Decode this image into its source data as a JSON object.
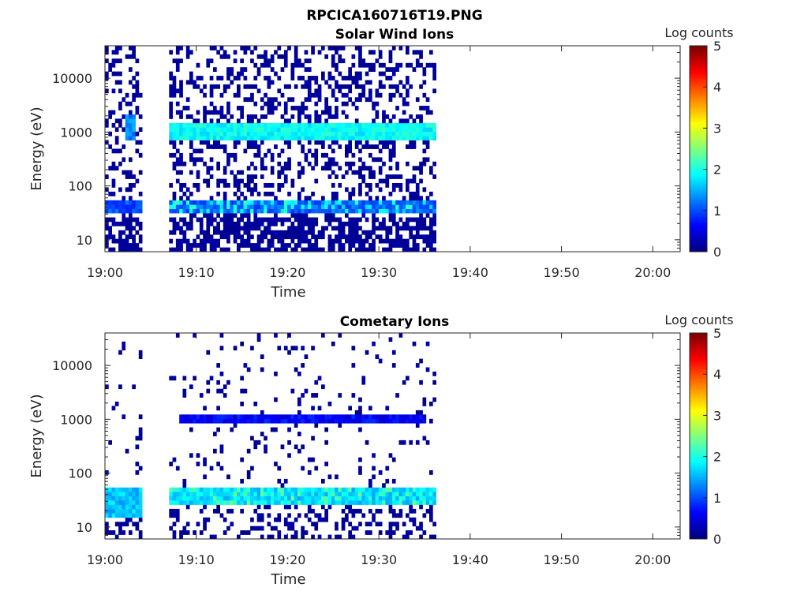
{
  "figure_title": "RPCICA160716T19.PNG",
  "colorbar": {
    "label": "Log counts",
    "ticks": [
      "0",
      "1",
      "2",
      "3",
      "4",
      "5"
    ],
    "range": [
      0,
      5
    ],
    "colormap": "jet"
  },
  "chart_data": [
    {
      "type": "heatmap",
      "title": "Solar Wind Ions",
      "xlabel": "Time",
      "ylabel": "Energy (eV)",
      "x_tick_labels": [
        "19:00",
        "19:10",
        "19:20",
        "19:30",
        "19:40",
        "19:50",
        "20:00"
      ],
      "y_tick_labels": [
        "10",
        "100",
        "1000",
        "10000"
      ],
      "y_scale": "log",
      "xlim": [
        "19:00",
        "20:03"
      ],
      "ylim": [
        6,
        40000
      ],
      "z_range": [
        0,
        5
      ],
      "data_time_range": [
        "19:00",
        "19:36"
      ],
      "data_gap": [
        "19:04",
        "19:07"
      ],
      "bands": [
        {
          "energy_min": 30,
          "energy_max": 55,
          "log_counts": 1.1,
          "span": [
            "19:07",
            "19:36"
          ],
          "note_peak": 1.9
        },
        {
          "energy_min": 30,
          "energy_max": 55,
          "log_counts": 1.0,
          "span": [
            "19:00",
            "19:04"
          ]
        },
        {
          "energy_min": 700,
          "energy_max": 1500,
          "log_counts": 1.9,
          "span": [
            "19:07",
            "19:36"
          ]
        },
        {
          "energy_min": 700,
          "energy_max": 2000,
          "log_counts": 1.3,
          "span": [
            "19:02",
            "19:03"
          ]
        }
      ]
    },
    {
      "type": "heatmap",
      "title": "Cometary Ions",
      "xlabel": "Time",
      "ylabel": "Energy (eV)",
      "x_tick_labels": [
        "19:00",
        "19:10",
        "19:20",
        "19:30",
        "19:40",
        "19:50",
        "20:00"
      ],
      "y_tick_labels": [
        "10",
        "100",
        "1000",
        "10000"
      ],
      "y_scale": "log",
      "xlim": [
        "19:00",
        "20:03"
      ],
      "ylim": [
        6,
        40000
      ],
      "z_range": [
        0,
        5
      ],
      "data_time_range": [
        "19:00",
        "19:36"
      ],
      "data_gap": [
        "19:04",
        "19:07"
      ],
      "bands": [
        {
          "energy_min": 28,
          "energy_max": 55,
          "log_counts": 1.7,
          "span": [
            "19:07",
            "19:36"
          ],
          "note_peak": 2.2
        },
        {
          "energy_min": 15,
          "energy_max": 55,
          "log_counts": 1.6,
          "span": [
            "19:00",
            "19:04"
          ]
        },
        {
          "energy_min": 800,
          "energy_max": 1300,
          "log_counts": 0.6,
          "span": [
            "19:08",
            "19:35"
          ]
        }
      ]
    }
  ]
}
